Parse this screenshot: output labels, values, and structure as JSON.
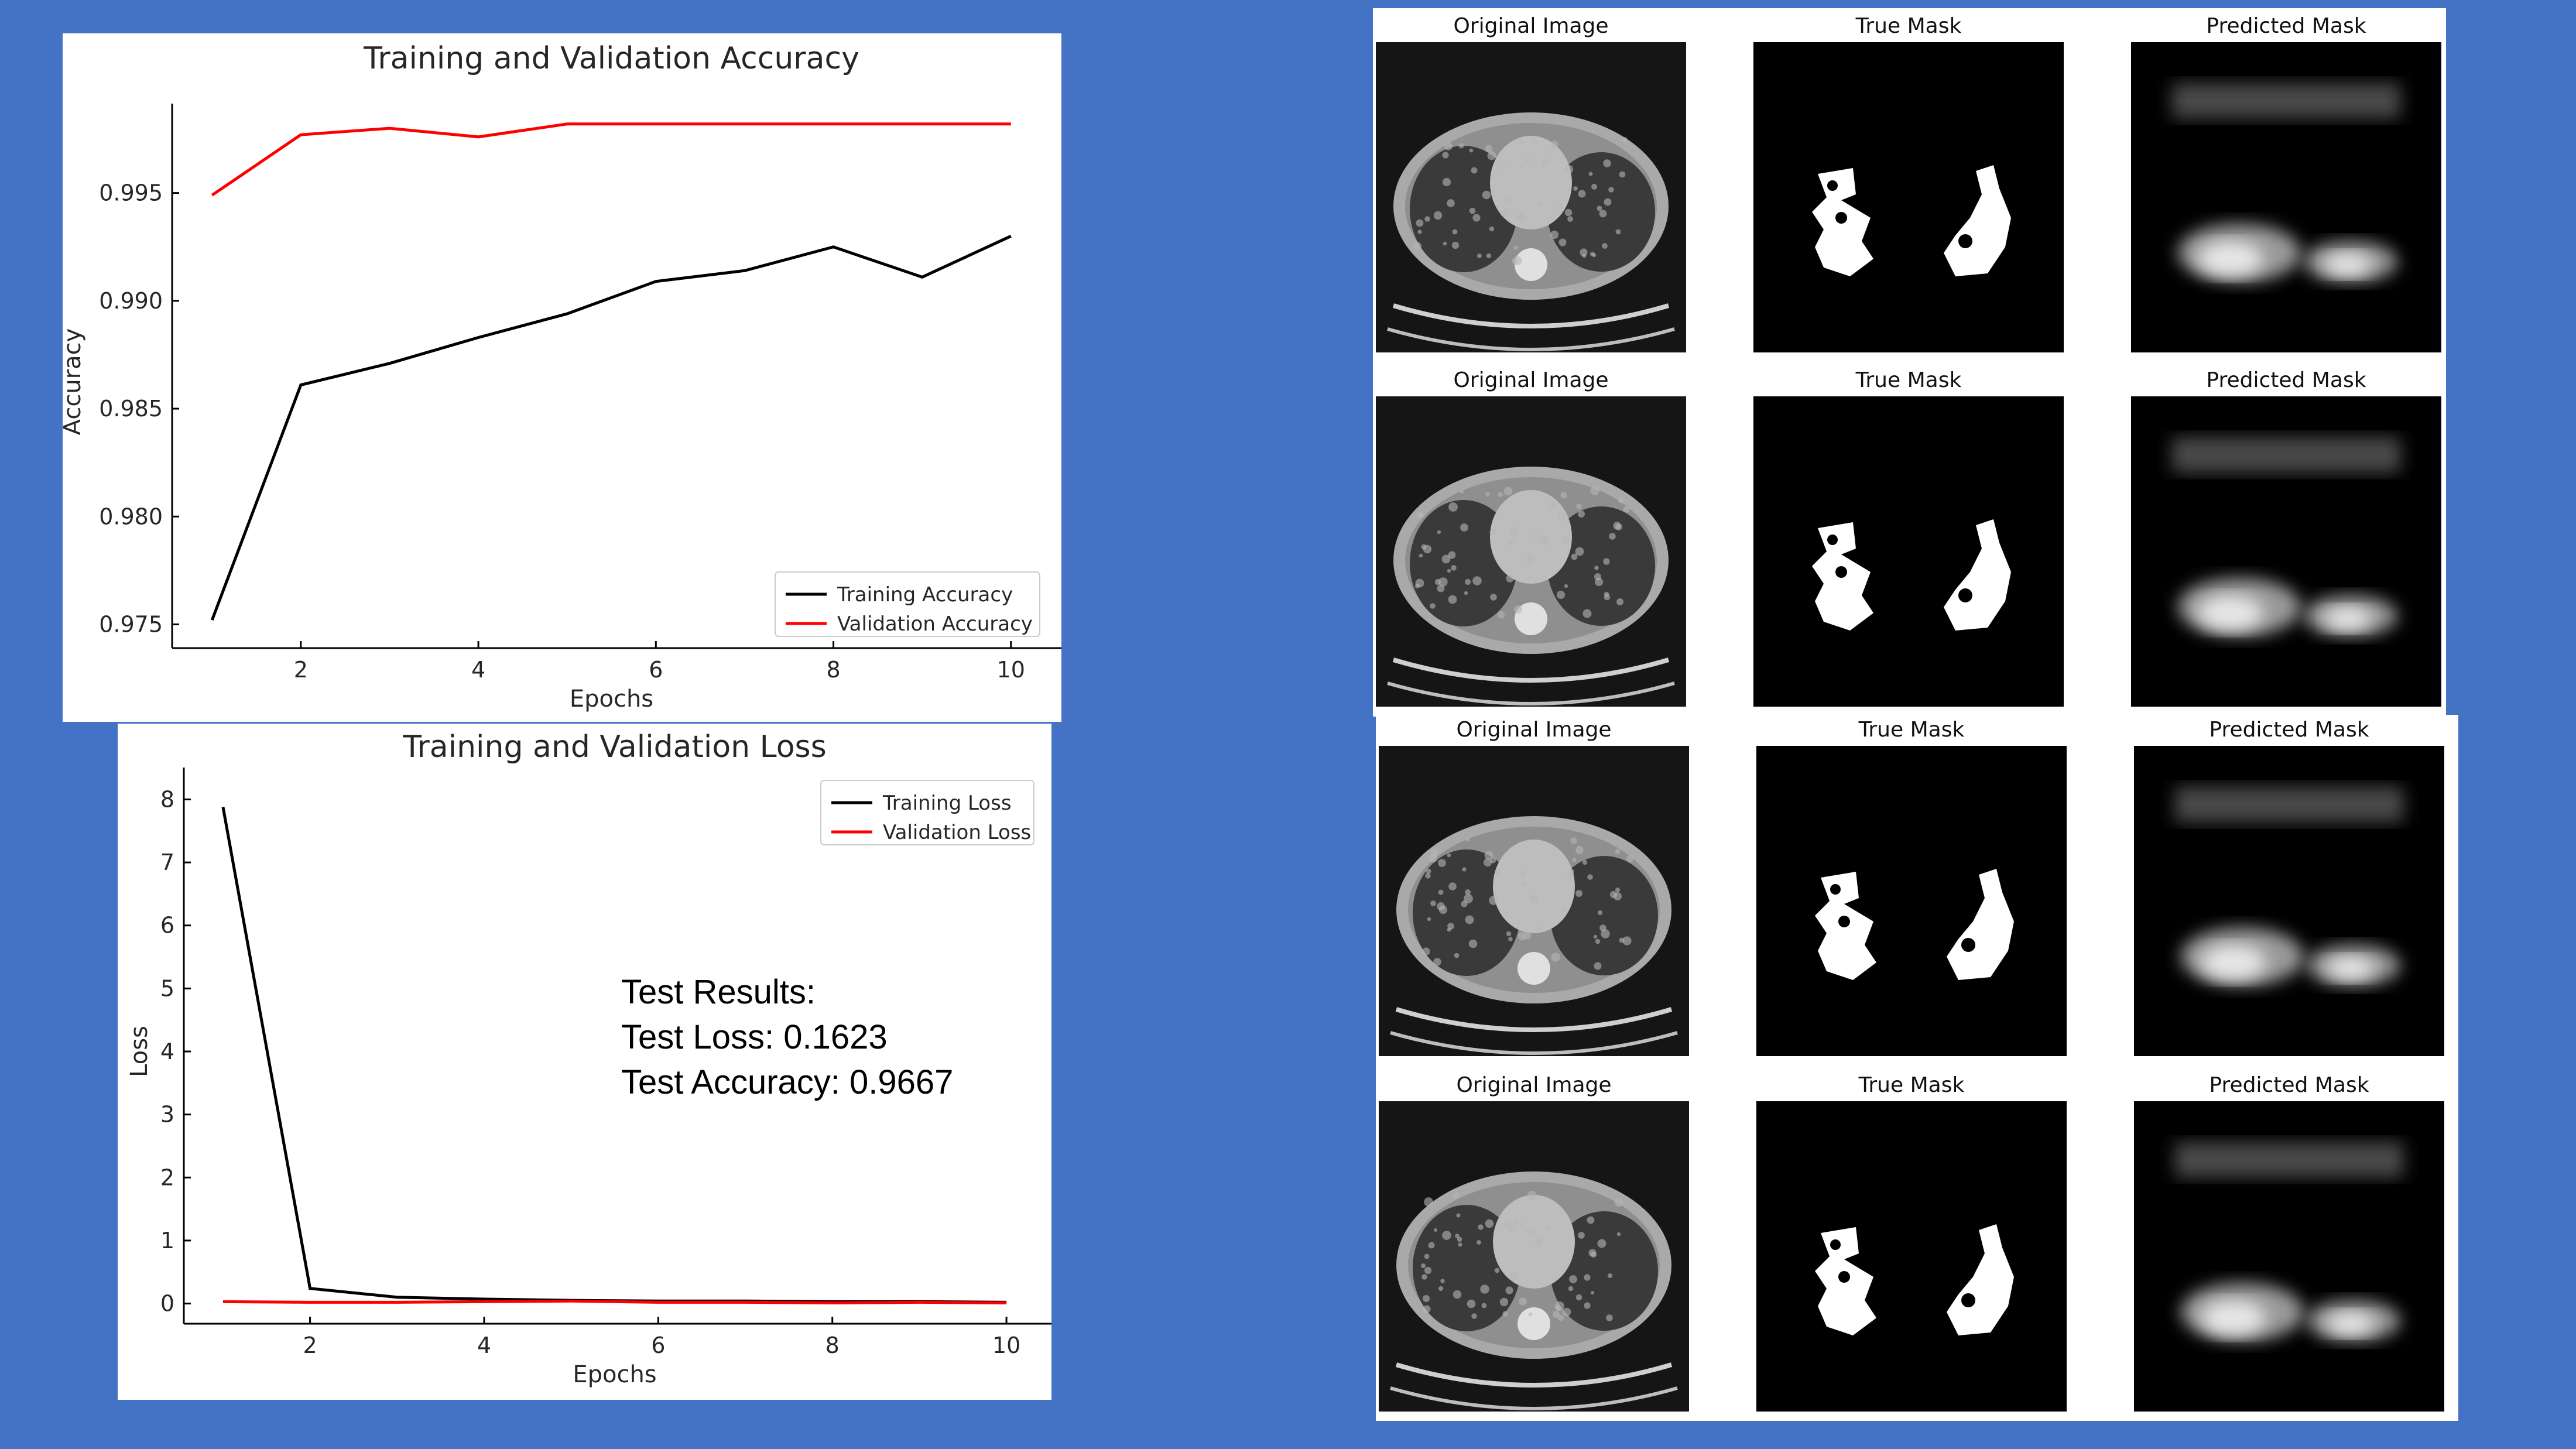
{
  "colors": {
    "background": "#4472c4",
    "training": "#000000",
    "validation": "#ff0000"
  },
  "results": {
    "heading": "Test Results:",
    "loss_line": "Test Loss: 0.1623",
    "accuracy_line": "Test Accuracy: 0.9667"
  },
  "grid": {
    "original_label": "Original Image",
    "true_label": "True Mask",
    "predicted_label": "Predicted Mask"
  },
  "chart_data": [
    {
      "type": "line",
      "title": "Training and Validation Accuracy",
      "xlabel": "Epochs",
      "ylabel": "Accuracy",
      "x": [
        1,
        2,
        3,
        4,
        5,
        6,
        7,
        8,
        9,
        10
      ],
      "xticks": [
        "2",
        "4",
        "6",
        "8",
        "10"
      ],
      "yticks": [
        "0.975",
        "0.980",
        "0.985",
        "0.990",
        "0.995"
      ],
      "ylim": [
        0.9739,
        0.9986
      ],
      "xlim": [
        0.55,
        10.45
      ],
      "grid": false,
      "legend_position": "bottom-right",
      "series": [
        {
          "name": "Training Accuracy",
          "color": "#000000",
          "values": [
            0.9752,
            0.9861,
            0.9871,
            0.9883,
            0.9894,
            0.9909,
            0.9914,
            0.9925,
            0.9911,
            0.993
          ]
        },
        {
          "name": "Validation Accuracy",
          "color": "#ff0000",
          "values": [
            0.9949,
            0.9977,
            0.998,
            0.9976,
            0.9982,
            0.9982,
            0.9982,
            0.9982,
            0.9982,
            0.9982
          ]
        }
      ]
    },
    {
      "type": "line",
      "title": "Training and Validation Loss",
      "xlabel": "Epochs",
      "ylabel": "Loss",
      "x": [
        1,
        2,
        3,
        4,
        5,
        6,
        7,
        8,
        9,
        10
      ],
      "xticks": [
        "2",
        "4",
        "6",
        "8",
        "10"
      ],
      "yticks": [
        "0",
        "1",
        "2",
        "3",
        "4",
        "5",
        "6",
        "7",
        "8"
      ],
      "ylim": [
        -0.32,
        8.32
      ],
      "xlim": [
        0.55,
        10.45
      ],
      "grid": false,
      "legend_position": "top-right",
      "series": [
        {
          "name": "Training Loss",
          "color": "#000000",
          "values": [
            7.88,
            0.24,
            0.1,
            0.07,
            0.05,
            0.04,
            0.04,
            0.03,
            0.03,
            0.02
          ]
        },
        {
          "name": "Validation Loss",
          "color": "#ff0000",
          "values": [
            0.03,
            0.02,
            0.02,
            0.03,
            0.04,
            0.02,
            0.02,
            0.01,
            0.02,
            0.01
          ]
        }
      ]
    }
  ]
}
